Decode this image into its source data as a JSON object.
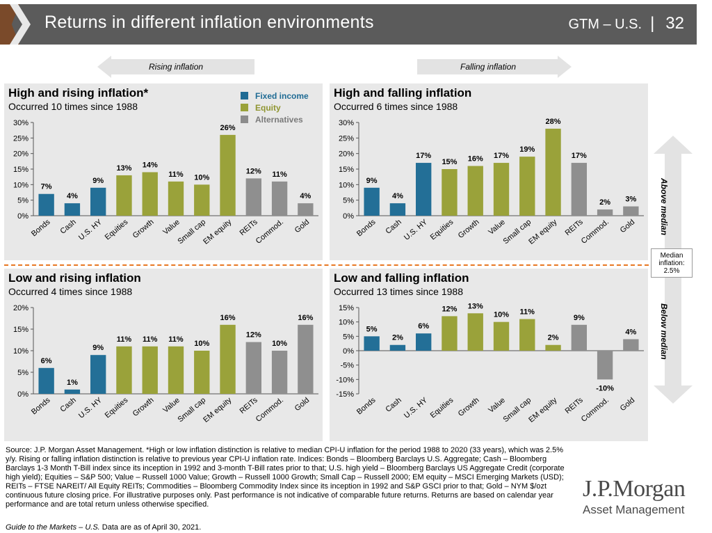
{
  "header": {
    "title": "Returns in different inflation environments",
    "series": "GTM – U.S.",
    "page": "32"
  },
  "arrows": {
    "rising": "Rising inflation",
    "falling": "Falling inflation"
  },
  "side": {
    "above": "Above median",
    "below": "Below median",
    "median": [
      "Median",
      "inflation:",
      "2.5%"
    ]
  },
  "legend": [
    {
      "label": "Fixed income",
      "color": "#1f6b94"
    },
    {
      "label": "Equity",
      "color": "#9aa23a"
    },
    {
      "label": "Alternatives",
      "color": "#8c8c8c"
    }
  ],
  "colors": {
    "fixed": "#236f97",
    "equity": "#9aa23a",
    "alt": "#8f8f8f",
    "accent": "#e87722"
  },
  "chart_data": [
    {
      "type": "bar",
      "title": "High and rising inflation*",
      "subtitle": "Occurred 10 times since 1988",
      "categories": [
        "Bonds",
        "Cash",
        "U.S. HY",
        "Equities",
        "Growth",
        "Value",
        "Small cap",
        "EM equity",
        "REITs",
        "Commod.",
        "Gold"
      ],
      "groups": [
        "fixed",
        "fixed",
        "fixed",
        "equity",
        "equity",
        "equity",
        "equity",
        "equity",
        "alt",
        "alt",
        "alt"
      ],
      "values": [
        7,
        4,
        9,
        13,
        14,
        11,
        10,
        26,
        12,
        11,
        4
      ],
      "ylim": [
        0,
        30
      ],
      "yticks": [
        0,
        5,
        10,
        15,
        20,
        25,
        30
      ],
      "ysuffix": "%"
    },
    {
      "type": "bar",
      "title": "High and falling inflation",
      "subtitle": "Occurred 6 times since 1988",
      "categories": [
        "Bonds",
        "Cash",
        "U.S. HY",
        "Equities",
        "Growth",
        "Value",
        "Small cap",
        "EM equity",
        "REITs",
        "Commod.",
        "Gold"
      ],
      "groups": [
        "fixed",
        "fixed",
        "fixed",
        "equity",
        "equity",
        "equity",
        "equity",
        "equity",
        "alt",
        "alt",
        "alt"
      ],
      "values": [
        9,
        4,
        17,
        15,
        16,
        17,
        19,
        28,
        17,
        2,
        3
      ],
      "ylim": [
        0,
        30
      ],
      "yticks": [
        0,
        5,
        10,
        15,
        20,
        25,
        30
      ],
      "ysuffix": "%"
    },
    {
      "type": "bar",
      "title": "Low and rising inflation",
      "subtitle": "Occurred 4 times since 1988",
      "categories": [
        "Bonds",
        "Cash",
        "U.S. HY",
        "Equities",
        "Growth",
        "Value",
        "Small cap",
        "EM equity",
        "REITs",
        "Commod.",
        "Gold"
      ],
      "groups": [
        "fixed",
        "fixed",
        "fixed",
        "equity",
        "equity",
        "equity",
        "equity",
        "equity",
        "alt",
        "alt",
        "alt"
      ],
      "values": [
        6,
        1,
        9,
        11,
        11,
        11,
        10,
        16,
        12,
        10,
        16
      ],
      "ylim": [
        0,
        20
      ],
      "yticks": [
        0,
        5,
        10,
        15,
        20
      ],
      "ysuffix": "%"
    },
    {
      "type": "bar",
      "title": "Low and falling inflation",
      "subtitle": "Occurred 13 times since 1988",
      "categories": [
        "Bonds",
        "Cash",
        "U.S. HY",
        "Equities",
        "Growth",
        "Value",
        "Small cap",
        "EM equity",
        "REITs",
        "Commod.",
        "Gold"
      ],
      "groups": [
        "fixed",
        "fixed",
        "fixed",
        "equity",
        "equity",
        "equity",
        "equity",
        "equity",
        "alt",
        "alt",
        "alt"
      ],
      "values": [
        5,
        2,
        6,
        12,
        13,
        10,
        11,
        2,
        9,
        -10,
        4
      ],
      "ylim": [
        -15,
        15
      ],
      "yticks": [
        -15,
        -10,
        -5,
        0,
        5,
        10,
        15
      ],
      "ysuffix": "%"
    }
  ],
  "source": "Source: J.P. Morgan Asset Management. *High or low inflation distinction is relative to median CPI-U inflation for the period 1988 to 2020 (33 years), which was 2.5% y/y.  Rising or falling inflation distinction is relative to previous year CPI-U inflation rate. Indices: Bonds – Bloomberg Barclays U.S. Aggregate;  Cash – Bloomberg Barclays 1-3 Month T-Bill index since its inception in 1992 and 3-month T-Bill rates prior to that; U.S. high yield – Bloomberg Barclays US Aggregate Credit (corporate high yield); Equities – S&P 500; Value – Russell 1000 Value; Growth – Russell 1000 Growth; Small Cap – Russell 2000; EM equity – MSCI Emerging Markets (USD); REITs – FTSE NAREIT/ All Equity REITs; Commodities – Bloomberg Commodity Index since its inception in 1992 and S&P GSCI prior to that; Gold – NYM $/ozt continuous future closing price. For illustrative purposes only. Past performance is not indicative of comparable future returns. Returns are based on calendar year performance and are total return unless otherwise specified.",
  "guide_italic": "Guide to the Markets – U.S.",
  "guide_rest": " Data are as of April 30, 2021.",
  "logo": {
    "line1": "J.P.Morgan",
    "line2": "Asset Management"
  }
}
